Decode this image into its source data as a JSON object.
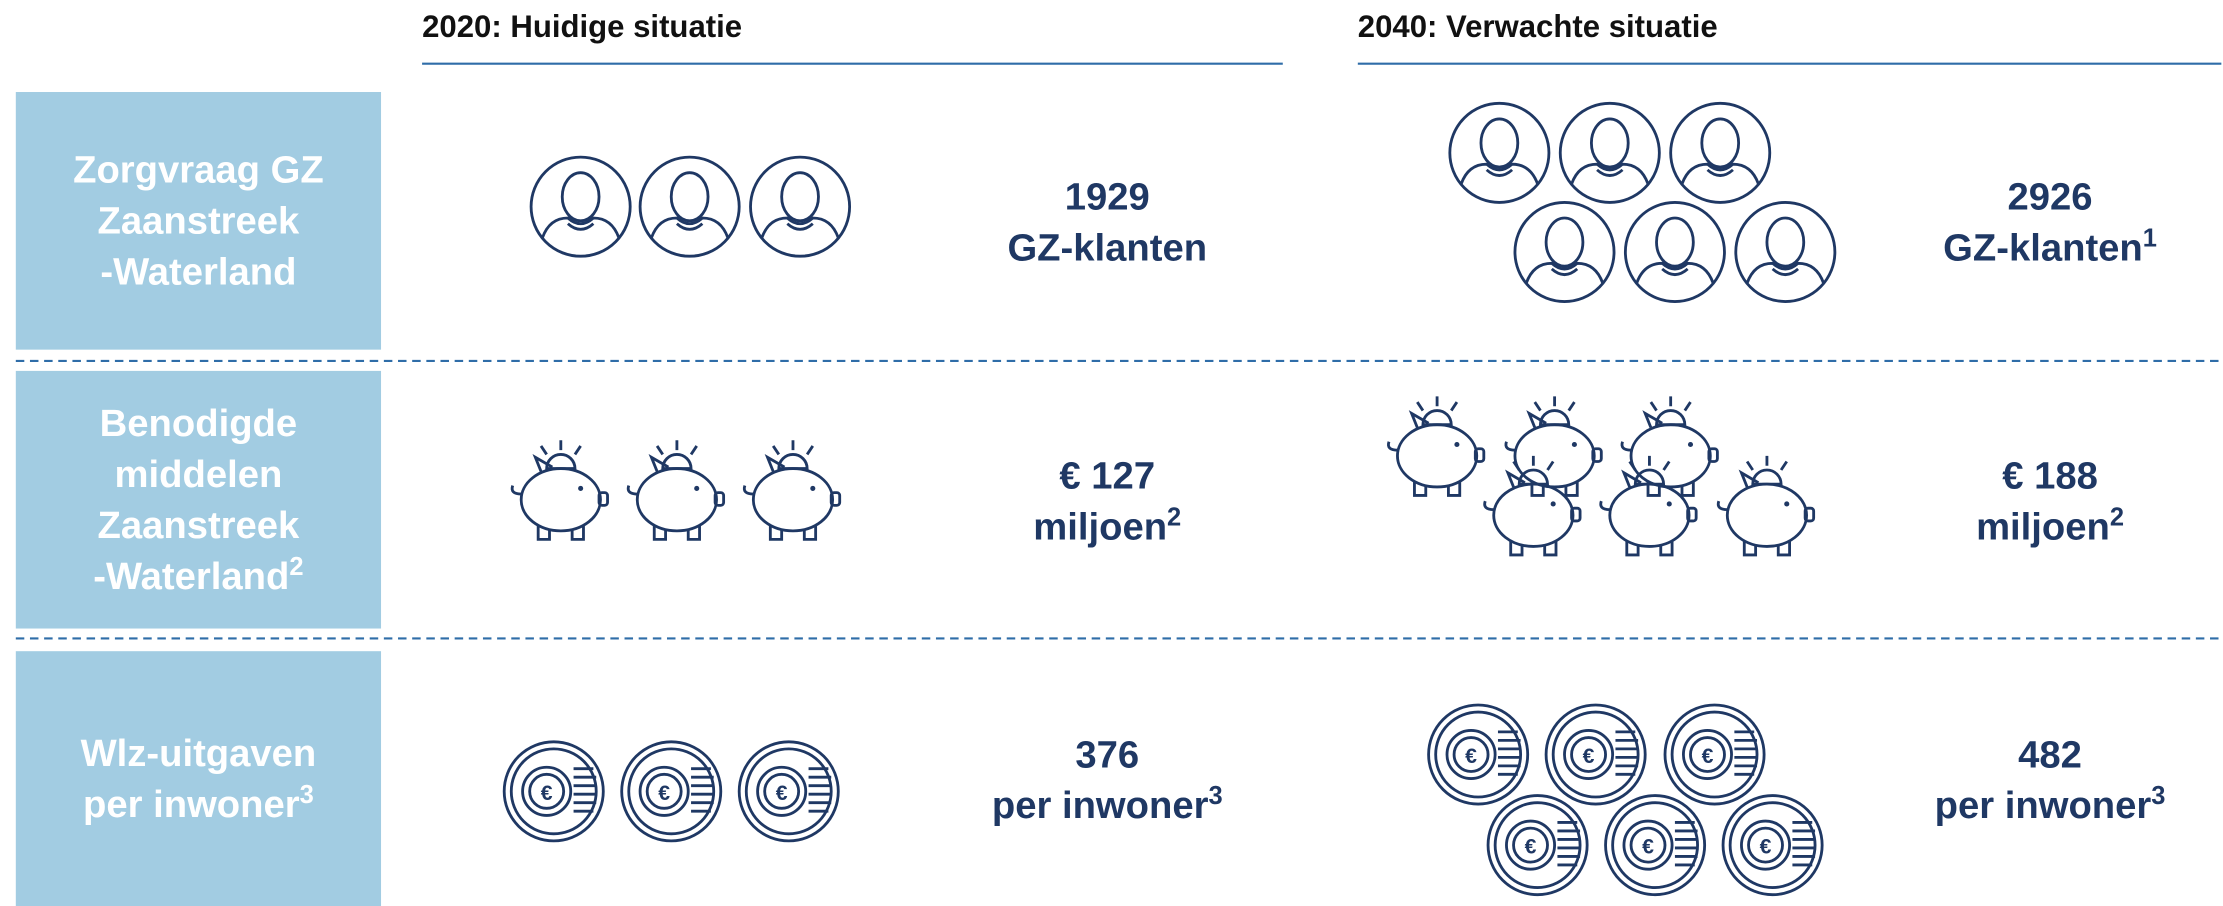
{
  "columns": [
    "2020: Huidige situatie",
    "2040: Verwachte situatie"
  ],
  "rows": [
    {
      "label": [
        "Zorgvraag GZ",
        "Zaanstreek",
        "-Waterland"
      ],
      "values": [
        {
          "number": "1929",
          "unit": "GZ-klanten"
        },
        {
          "number": "2926",
          "unit": "GZ-klanten",
          "note": "1"
        }
      ]
    },
    {
      "label": [
        "Benodigde",
        "middelen",
        "Zaanstreek",
        "-Waterland"
      ],
      "label_note": "2",
      "values": [
        {
          "number": "€ 127",
          "unit": "miljoen",
          "note": "2"
        },
        {
          "number": "€ 188",
          "unit": "miljoen",
          "note": "2"
        }
      ]
    },
    {
      "label": [
        "Wlz-uitgaven",
        "per inwoner"
      ],
      "label_note": "3",
      "values": [
        {
          "number": "376",
          "unit": "per inwoner",
          "note": "3"
        },
        {
          "number": "482",
          "unit": "per inwoner",
          "note": "3"
        }
      ]
    }
  ]
}
